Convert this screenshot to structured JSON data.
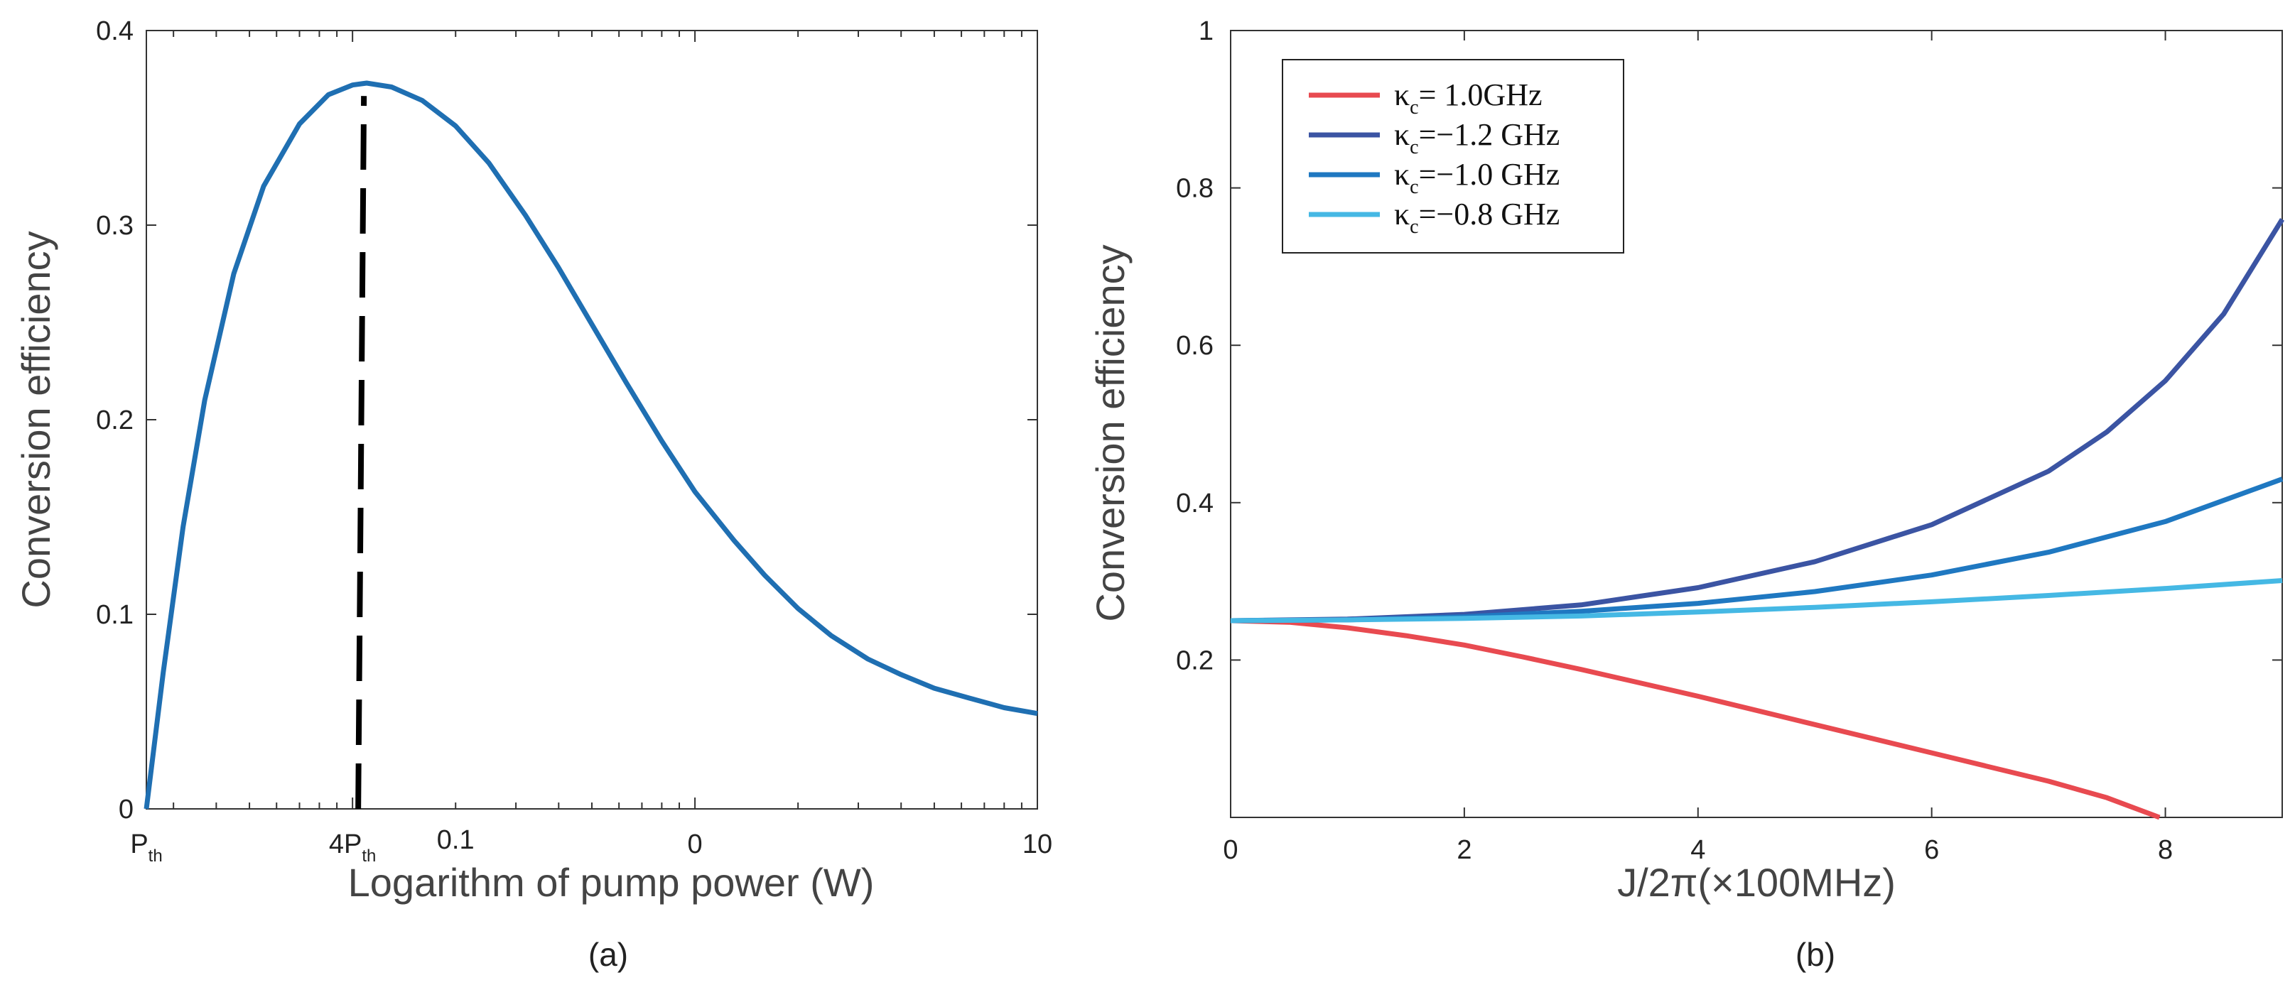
{
  "chart_data": [
    {
      "type": "line",
      "panel": "(a)",
      "title": "",
      "xlabel": "Logarithm of pump power (W)",
      "ylabel": "Conversion efficiency",
      "x_scale": "log",
      "xlim": [
        0.025,
        10
      ],
      "ylim": [
        0,
        0.4
      ],
      "yticks": [
        "0",
        "0.1",
        "0.2",
        "0.3",
        "0.4"
      ],
      "xticks": [
        {
          "label": "P",
          "sub": "th",
          "x": 0.025
        },
        {
          "label": "4P",
          "sub": "th",
          "x": 0.1
        },
        {
          "label": "0.1",
          "sub": "",
          "x": 0.2
        },
        {
          "label": "0",
          "sub": "",
          "x": 1
        },
        {
          "label": "10",
          "sub": "",
          "x": 10
        }
      ],
      "series": [
        {
          "name": "efficiency",
          "color": "#1f6fb2",
          "x": [
            0.025,
            0.028,
            0.032,
            0.037,
            0.045,
            0.055,
            0.07,
            0.085,
            0.1,
            0.11,
            0.13,
            0.16,
            0.2,
            0.25,
            0.32,
            0.4,
            0.5,
            0.63,
            0.8,
            1.0,
            1.3,
            1.6,
            2.0,
            2.5,
            3.2,
            4.0,
            5.0,
            6.3,
            8.0,
            10.0
          ],
          "y": [
            0.0,
            0.07,
            0.145,
            0.21,
            0.275,
            0.32,
            0.352,
            0.367,
            0.372,
            0.373,
            0.371,
            0.364,
            0.351,
            0.332,
            0.305,
            0.278,
            0.249,
            0.219,
            0.189,
            0.163,
            0.138,
            0.12,
            0.103,
            0.089,
            0.077,
            0.069,
            0.062,
            0.057,
            0.052,
            0.049
          ]
        }
      ],
      "annotations": [
        {
          "type": "vline",
          "x": 0.1,
          "y_from": 0,
          "y_to": 0.37,
          "style": "dashed",
          "color": "#000000"
        }
      ]
    },
    {
      "type": "line",
      "panel": "(b)",
      "title": "",
      "xlabel": "J/2π(×100MHz)",
      "ylabel": "Conversion efficiency",
      "xlim": [
        0,
        9
      ],
      "ylim": [
        0,
        1
      ],
      "xticks": [
        "0",
        "2",
        "4",
        "6",
        "8"
      ],
      "yticks": [
        "0.2",
        "0.4",
        "0.6",
        "0.8",
        "1"
      ],
      "legend_position": "top-left",
      "series": [
        {
          "name": "κc= 1.0GHz",
          "legend_symbol": "κ",
          "legend_sub": "c",
          "legend_rest": "=  1.0GHz",
          "color": "#e84a50",
          "x": [
            0,
            0.5,
            1,
            1.5,
            2,
            2.5,
            3,
            3.5,
            4,
            4.5,
            5,
            5.5,
            6,
            6.5,
            7,
            7.5,
            7.95
          ],
          "y": [
            0.25,
            0.248,
            0.241,
            0.231,
            0.219,
            0.204,
            0.188,
            0.171,
            0.154,
            0.136,
            0.118,
            0.1,
            0.082,
            0.064,
            0.046,
            0.025,
            0.0
          ]
        },
        {
          "name": "κc=−1.2 GHz",
          "legend_symbol": "κ",
          "legend_sub": "c",
          "legend_rest": "=−1.2 GHz",
          "color": "#3b54a3",
          "x": [
            0,
            1,
            2,
            3,
            4,
            5,
            6,
            7,
            7.5,
            8,
            8.5,
            9
          ],
          "y": [
            0.25,
            0.252,
            0.258,
            0.27,
            0.292,
            0.325,
            0.372,
            0.44,
            0.49,
            0.555,
            0.64,
            0.76
          ]
        },
        {
          "name": "κc=−1.0 GHz",
          "legend_symbol": "κ",
          "legend_sub": "c",
          "legend_rest": "=−1.0 GHz",
          "color": "#1f78c1",
          "x": [
            0,
            1,
            2,
            3,
            4,
            5,
            6,
            7,
            8,
            9
          ],
          "y": [
            0.25,
            0.251,
            0.255,
            0.262,
            0.272,
            0.287,
            0.308,
            0.337,
            0.376,
            0.43
          ]
        },
        {
          "name": "κc=−0.8 GHz",
          "legend_symbol": "κ",
          "legend_sub": "c",
          "legend_rest": "=−0.8 GHz",
          "color": "#45b8e4",
          "x": [
            0,
            1,
            2,
            3,
            4,
            5,
            6,
            7,
            8,
            9
          ],
          "y": [
            0.25,
            0.251,
            0.253,
            0.256,
            0.261,
            0.267,
            0.274,
            0.282,
            0.291,
            0.301
          ]
        }
      ]
    }
  ],
  "captions": {
    "a": "(a)",
    "b": "(b)"
  }
}
